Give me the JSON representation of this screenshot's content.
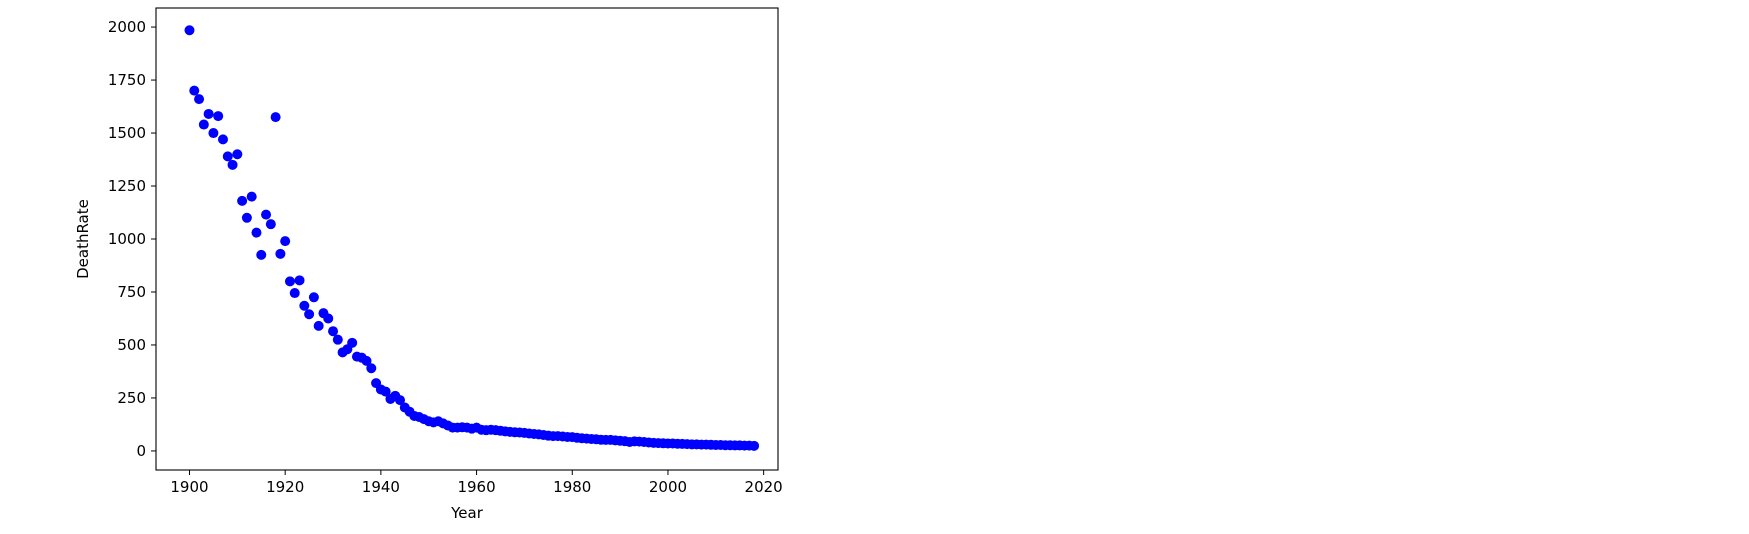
{
  "chart_data": {
    "type": "scatter",
    "title": "",
    "xlabel": "Year",
    "ylabel": "DeathRate",
    "xlim": [
      1893,
      2023
    ],
    "ylim": [
      -90,
      2090
    ],
    "x_ticks": [
      1900,
      1920,
      1940,
      1960,
      1980,
      2000,
      2020
    ],
    "y_ticks": [
      0,
      250,
      500,
      750,
      1000,
      1250,
      1500,
      1750,
      2000
    ],
    "grid": false,
    "legend": "none",
    "marker_color": "#0000ff",
    "series": [
      {
        "color": "#0000ff",
        "points": [
          [
            1900,
            1985
          ],
          [
            1901,
            1700
          ],
          [
            1902,
            1660
          ],
          [
            1903,
            1540
          ],
          [
            1904,
            1590
          ],
          [
            1905,
            1500
          ],
          [
            1906,
            1580
          ],
          [
            1907,
            1470
          ],
          [
            1908,
            1390
          ],
          [
            1909,
            1350
          ],
          [
            1910,
            1400
          ],
          [
            1911,
            1180
          ],
          [
            1912,
            1100
          ],
          [
            1913,
            1200
          ],
          [
            1914,
            1030
          ],
          [
            1915,
            925
          ],
          [
            1916,
            1115
          ],
          [
            1917,
            1070
          ],
          [
            1918,
            1575
          ],
          [
            1919,
            930
          ],
          [
            1920,
            990
          ],
          [
            1921,
            800
          ],
          [
            1922,
            745
          ],
          [
            1923,
            805
          ],
          [
            1924,
            685
          ],
          [
            1925,
            645
          ],
          [
            1926,
            725
          ],
          [
            1927,
            590
          ],
          [
            1928,
            650
          ],
          [
            1929,
            625
          ],
          [
            1930,
            565
          ],
          [
            1931,
            525
          ],
          [
            1932,
            465
          ],
          [
            1933,
            480
          ],
          [
            1934,
            510
          ],
          [
            1935,
            445
          ],
          [
            1936,
            440
          ],
          [
            1937,
            425
          ],
          [
            1938,
            390
          ],
          [
            1939,
            320
          ],
          [
            1940,
            290
          ],
          [
            1941,
            280
          ],
          [
            1942,
            245
          ],
          [
            1943,
            260
          ],
          [
            1944,
            240
          ],
          [
            1945,
            205
          ],
          [
            1946,
            185
          ],
          [
            1947,
            165
          ],
          [
            1948,
            160
          ],
          [
            1949,
            150
          ],
          [
            1950,
            140
          ],
          [
            1951,
            135
          ],
          [
            1952,
            140
          ],
          [
            1953,
            130
          ],
          [
            1954,
            120
          ],
          [
            1955,
            110
          ],
          [
            1956,
            110
          ],
          [
            1957,
            112
          ],
          [
            1958,
            110
          ],
          [
            1959,
            105
          ],
          [
            1960,
            110
          ],
          [
            1961,
            100
          ],
          [
            1962,
            98
          ],
          [
            1963,
            100
          ],
          [
            1964,
            98
          ],
          [
            1965,
            95
          ],
          [
            1966,
            92
          ],
          [
            1967,
            90
          ],
          [
            1968,
            88
          ],
          [
            1969,
            87
          ],
          [
            1970,
            85
          ],
          [
            1971,
            82
          ],
          [
            1972,
            80
          ],
          [
            1973,
            78
          ],
          [
            1974,
            75
          ],
          [
            1975,
            72
          ],
          [
            1976,
            70
          ],
          [
            1977,
            70
          ],
          [
            1978,
            68
          ],
          [
            1979,
            66
          ],
          [
            1980,
            65
          ],
          [
            1981,
            62
          ],
          [
            1982,
            60
          ],
          [
            1983,
            58
          ],
          [
            1984,
            56
          ],
          [
            1985,
            55
          ],
          [
            1986,
            53
          ],
          [
            1987,
            52
          ],
          [
            1988,
            52
          ],
          [
            1989,
            50
          ],
          [
            1990,
            48
          ],
          [
            1991,
            46
          ],
          [
            1992,
            42
          ],
          [
            1993,
            45
          ],
          [
            1994,
            44
          ],
          [
            1995,
            42
          ],
          [
            1996,
            40
          ],
          [
            1997,
            38
          ],
          [
            1998,
            37
          ],
          [
            1999,
            36
          ],
          [
            2000,
            35
          ],
          [
            2001,
            35
          ],
          [
            2002,
            34
          ],
          [
            2003,
            33
          ],
          [
            2004,
            32
          ],
          [
            2005,
            31
          ],
          [
            2006,
            31
          ],
          [
            2007,
            30
          ],
          [
            2008,
            30
          ],
          [
            2009,
            29
          ],
          [
            2010,
            28
          ],
          [
            2011,
            28
          ],
          [
            2012,
            27
          ],
          [
            2013,
            27
          ],
          [
            2014,
            26
          ],
          [
            2015,
            26
          ],
          [
            2016,
            25
          ],
          [
            2017,
            25
          ],
          [
            2018,
            24
          ]
        ]
      }
    ]
  }
}
